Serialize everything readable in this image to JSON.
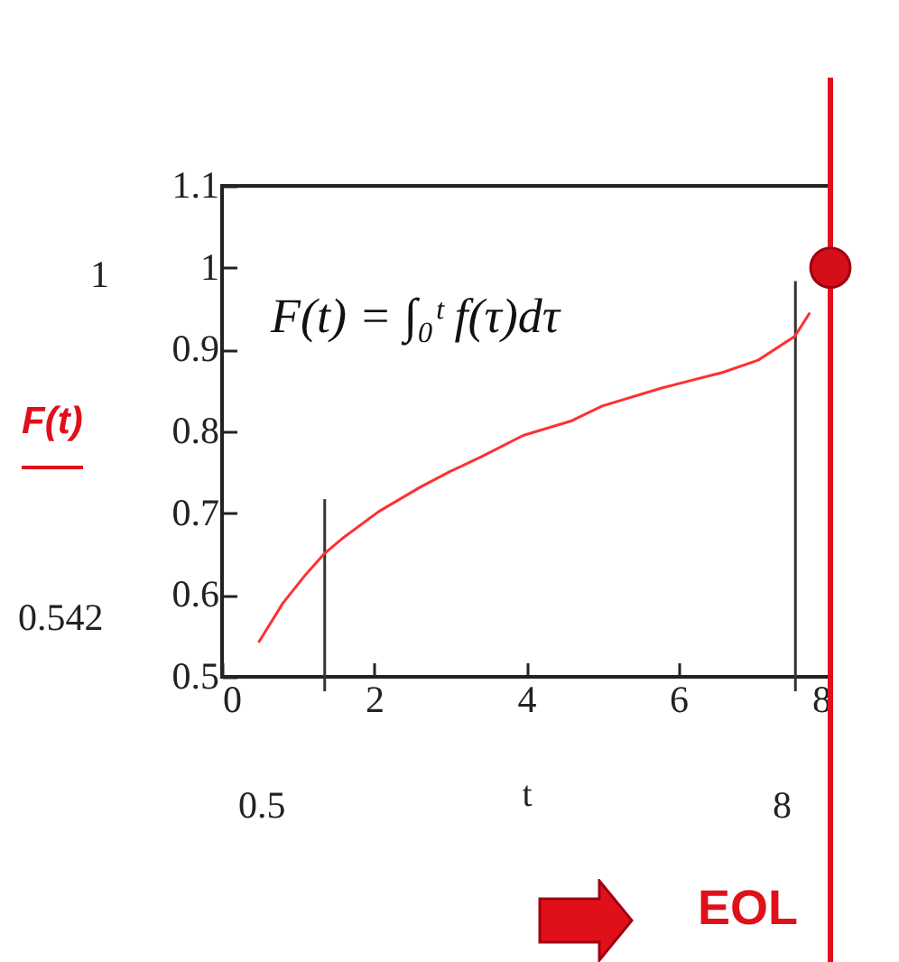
{
  "chart_data": {
    "type": "line",
    "xlabel": "t",
    "ylabel": "F(t)",
    "xlim": [
      0,
      8
    ],
    "ylim": [
      0.5,
      1.1
    ],
    "xticks": [
      0,
      2,
      4,
      6,
      8
    ],
    "yticks": [
      0.5,
      0.6,
      0.7,
      0.8,
      0.9,
      1,
      1.1
    ],
    "series": [
      {
        "color": "#ff3030",
        "x": [
          0.48,
          0.8,
          1.1,
          1.35,
          1.58,
          2.06,
          2.61,
          3.0,
          3.41,
          3.96,
          4.6,
          5.0,
          5.78,
          6.58,
          7.05,
          7.53,
          7.73
        ],
        "values": [
          0.542,
          0.59,
          0.625,
          0.651,
          0.669,
          0.702,
          0.732,
          0.751,
          0.769,
          0.795,
          0.813,
          0.831,
          0.853,
          0.872,
          0.887,
          0.916,
          0.945
        ]
      },
      {
        "type": "scatter",
        "marker": "circle",
        "color": "#d50f1a",
        "x": [
          8
        ],
        "values": [
          1
        ]
      }
    ],
    "ref_lines": [
      {
        "axis": "x",
        "value": 1.35,
        "color": "#333333"
      },
      {
        "axis": "x",
        "value": 7.54,
        "color": "#333333"
      },
      {
        "axis": "x",
        "value": 8,
        "label": "EOL",
        "color": "#e0101a"
      }
    ],
    "annotations": [
      "F(t) = ∫₀ᵗ f(τ)dτ",
      "1",
      "0.542",
      "0.5",
      "8"
    ]
  }
}
